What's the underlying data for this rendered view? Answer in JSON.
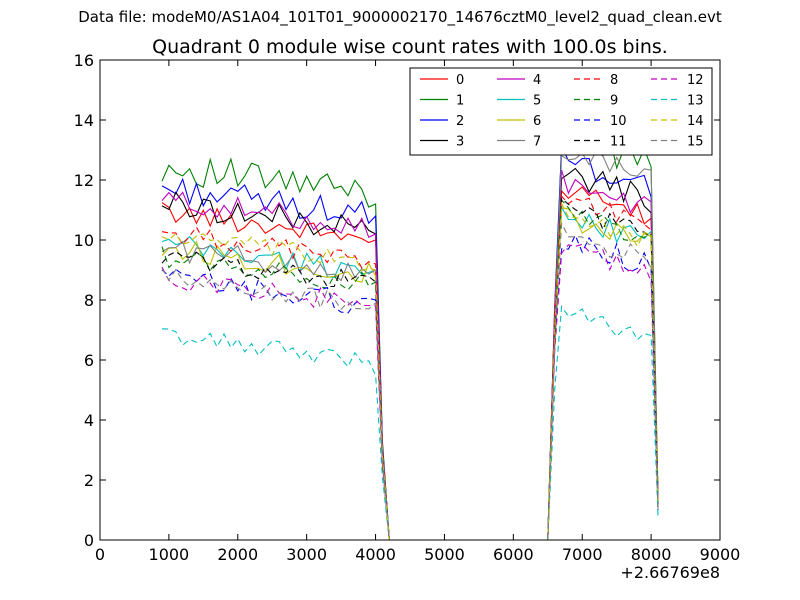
{
  "chart_data": {
    "type": "line",
    "suptitle": "Data file: modeM0/AS1A04_101T01_9000002170_14676cztM0_level2_quad_clean.evt",
    "title": "Quadrant 0 module wise count rates with 100.0s bins.",
    "xlabel": "",
    "ylabel": "",
    "x_offset_label": "+2.66769e8",
    "xlim": [
      0,
      9000
    ],
    "ylim": [
      0,
      16
    ],
    "x_ticks": [
      0,
      1000,
      2000,
      3000,
      4000,
      5000,
      6000,
      7000,
      8000,
      9000
    ],
    "x_tick_labels": [
      "0",
      "1000",
      "2000",
      "3000",
      "4000",
      "5000",
      "6000",
      "7000",
      "8000",
      "9000"
    ],
    "y_ticks": [
      0,
      2,
      4,
      6,
      8,
      10,
      12,
      14,
      16
    ],
    "y_tick_labels": [
      "0",
      "2",
      "4",
      "6",
      "8",
      "10",
      "12",
      "14",
      "16"
    ],
    "grid": false,
    "legend": {
      "position": "top-right",
      "columns": 4
    },
    "segments": [
      {
        "x_start": 900,
        "x_end": 3900,
        "step": 100
      },
      {
        "x_start": 6700,
        "x_end": 8000,
        "step": 100
      }
    ],
    "transitions": {
      "seg1_end": [
        [
          4000,
          "v_4000"
        ],
        [
          4100,
          "v_4100"
        ],
        [
          4200,
          0
        ]
      ],
      "gap": [
        [
          4200,
          0
        ],
        [
          6500,
          0
        ]
      ],
      "seg2_rise": [
        [
          6500,
          0
        ],
        [
          6600,
          "v_6600"
        ]
      ],
      "seg2_end": [
        [
          8100,
          "v_8100"
        ]
      ]
    },
    "series": [
      {
        "name": "0",
        "color": "#ff0000",
        "dash": "solid",
        "level1": 10.5,
        "level2": 11.2,
        "amp": 0.35,
        "v_4000": 10.0,
        "v_4100": 3.0,
        "v_6600": 7.5,
        "v_8100": 1.4
      },
      {
        "name": "1",
        "color": "#008000",
        "dash": "solid",
        "level1": 12.0,
        "level2": 13.0,
        "amp": 0.55,
        "v_4000": 11.2,
        "v_4100": 3.3,
        "v_6600": 7.8,
        "v_8100": 1.5
      },
      {
        "name": "2",
        "color": "#0000ff",
        "dash": "solid",
        "level1": 11.3,
        "level2": 12.2,
        "amp": 0.45,
        "v_4000": 10.8,
        "v_4100": 3.2,
        "v_6600": 7.6,
        "v_8100": 1.3
      },
      {
        "name": "3",
        "color": "#000000",
        "dash": "solid",
        "level1": 10.8,
        "level2": 11.8,
        "amp": 0.45,
        "v_4000": 10.2,
        "v_4100": 3.1,
        "v_6600": 7.5,
        "v_8100": 1.2
      },
      {
        "name": "4",
        "color": "#bf00bf",
        "dash": "solid",
        "level1": 10.9,
        "level2": 11.5,
        "amp": 0.4,
        "v_4000": 10.2,
        "v_4100": 3.1,
        "v_6600": 7.7,
        "v_8100": 1.4
      },
      {
        "name": "5",
        "color": "#00bfbf",
        "dash": "solid",
        "level1": 9.4,
        "level2": 10.4,
        "amp": 0.4,
        "v_4000": 9.0,
        "v_4100": 2.9,
        "v_6600": 7.0,
        "v_8100": 1.2
      },
      {
        "name": "6",
        "color": "#bfbf00",
        "dash": "solid",
        "level1": 9.3,
        "level2": 10.3,
        "amp": 0.4,
        "v_4000": 8.8,
        "v_4100": 2.8,
        "v_6600": 6.9,
        "v_8100": 1.1
      },
      {
        "name": "7",
        "color": "#808080",
        "dash": "solid",
        "level1": 9.3,
        "level2": 12.6,
        "amp": 0.4,
        "v_4000": 9.0,
        "v_4100": 3.0,
        "v_6600": 7.2,
        "v_8100": 1.3
      },
      {
        "name": "8",
        "color": "#ff0000",
        "dash": "dashed",
        "level1": 9.8,
        "level2": 11.0,
        "amp": 0.35,
        "v_4000": 9.2,
        "v_4100": 2.9,
        "v_6600": 7.2,
        "v_8100": 1.2
      },
      {
        "name": "9",
        "color": "#008000",
        "dash": "dashed",
        "level1": 9.0,
        "level2": 10.5,
        "amp": 0.35,
        "v_4000": 8.6,
        "v_4100": 2.7,
        "v_6600": 6.8,
        "v_8100": 1.1
      },
      {
        "name": "10",
        "color": "#0000ff",
        "dash": "dashed",
        "level1": 8.3,
        "level2": 9.6,
        "amp": 0.4,
        "v_4000": 8.0,
        "v_4100": 2.6,
        "v_6600": 6.5,
        "v_8100": 1.0
      },
      {
        "name": "11",
        "color": "#000000",
        "dash": "dashed",
        "level1": 9.0,
        "level2": 10.6,
        "amp": 0.35,
        "v_4000": 8.6,
        "v_4100": 2.7,
        "v_6600": 6.9,
        "v_8100": 1.1
      },
      {
        "name": "12",
        "color": "#bf00bf",
        "dash": "dashed",
        "level1": 8.3,
        "level2": 9.3,
        "amp": 0.35,
        "v_4000": 7.8,
        "v_4100": 2.5,
        "v_6600": 6.3,
        "v_8100": 1.0
      },
      {
        "name": "13",
        "color": "#00bfbf",
        "dash": "dashed",
        "level1": 6.4,
        "level2": 7.2,
        "amp": 0.3,
        "v_4000": 5.5,
        "v_4100": 2.1,
        "v_6600": 5.0,
        "v_8100": 0.8
      },
      {
        "name": "14",
        "color": "#bfbf00",
        "dash": "dashed",
        "level1": 9.7,
        "level2": 10.4,
        "amp": 0.35,
        "v_4000": 9.0,
        "v_4100": 2.8,
        "v_6600": 7.0,
        "v_8100": 1.1
      },
      {
        "name": "15",
        "color": "#808080",
        "dash": "dashed",
        "level1": 8.3,
        "level2": 9.8,
        "amp": 0.35,
        "v_4000": 7.9,
        "v_4100": 2.6,
        "v_6600": 6.4,
        "v_8100": 1.0
      }
    ]
  }
}
